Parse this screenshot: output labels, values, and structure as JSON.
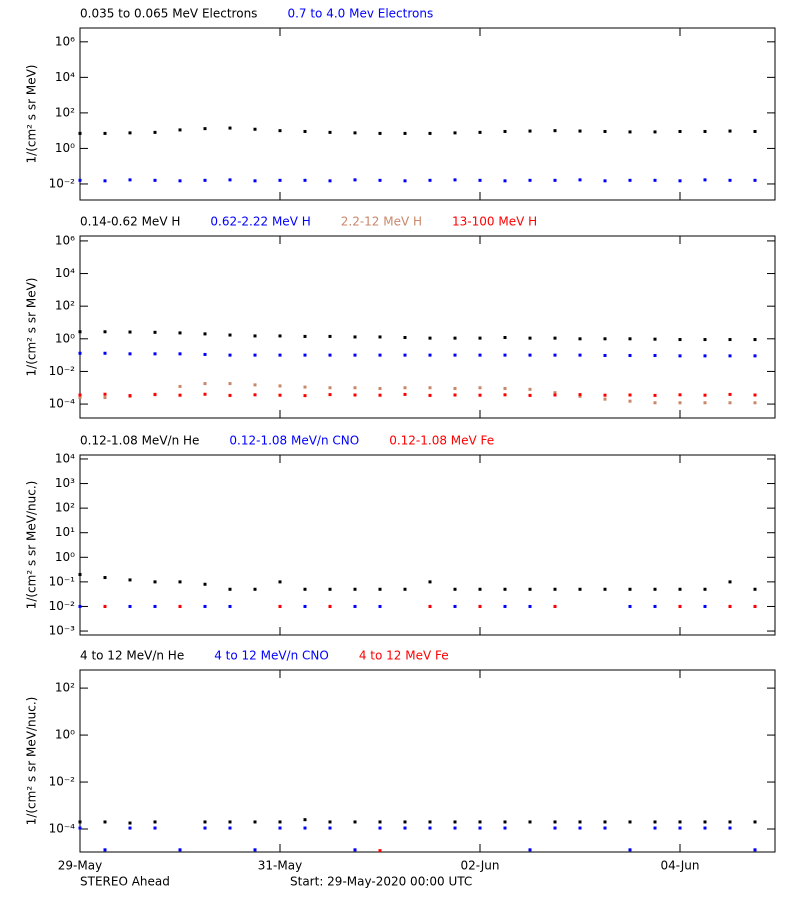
{
  "chart_data": [
    {
      "type": "scatter",
      "log_y": true,
      "y_label": "1/(cm² s sr MeV)",
      "x": [
        0,
        0.25,
        0.5,
        0.75,
        1,
        1.25,
        1.5,
        1.75,
        2,
        2.25,
        2.5,
        2.75,
        3,
        3.25,
        3.5,
        3.75,
        4,
        4.25,
        4.5,
        4.75,
        5,
        5.25,
        5.5,
        5.75,
        6,
        6.25,
        6.5,
        6.75
      ],
      "ylim": [
        0.00125,
        6000000
      ],
      "yticks": [
        {
          "value": 0.01,
          "label": "10⁻²"
        },
        {
          "value": 1,
          "label": "10⁰"
        },
        {
          "value": 100,
          "label": "10²"
        },
        {
          "value": 10000,
          "label": "10⁴"
        },
        {
          "value": 1000000,
          "label": "10⁶"
        }
      ],
      "series": [
        {
          "name": "0.035 to 0.065 MeV Electrons",
          "color": "#000000",
          "values": [
            7,
            7,
            7.5,
            8,
            11,
            13,
            14,
            12,
            10,
            9,
            8,
            7.5,
            7,
            7,
            7,
            7.5,
            8,
            9,
            9.5,
            10,
            9.5,
            9,
            8.5,
            8.5,
            9,
            9,
            9.5,
            9
          ]
        },
        {
          "name": "0.7 to 4.0 Mev Electrons",
          "color": "#0000ff",
          "values": [
            0.016,
            0.015,
            0.017,
            0.016,
            0.015,
            0.016,
            0.017,
            0.015,
            0.016,
            0.016,
            0.015,
            0.017,
            0.016,
            0.015,
            0.016,
            0.017,
            0.016,
            0.015,
            0.016,
            0.016,
            0.017,
            0.015,
            0.016,
            0.016,
            0.015,
            0.017,
            0.016,
            0.016
          ]
        }
      ]
    },
    {
      "type": "scatter",
      "log_y": true,
      "y_label": "1/(cm² s sr MeV)",
      "x": [
        0,
        0.25,
        0.5,
        0.75,
        1,
        1.25,
        1.5,
        1.75,
        2,
        2.25,
        2.5,
        2.75,
        3,
        3.25,
        3.5,
        3.75,
        4,
        4.25,
        4.5,
        4.75,
        5,
        5.25,
        5.5,
        5.75,
        6,
        6.25,
        6.5,
        6.75
      ],
      "ylim": [
        1.4e-05,
        2000000
      ],
      "yticks": [
        {
          "value": 0.0001,
          "label": "10⁻⁴"
        },
        {
          "value": 0.01,
          "label": "10⁻²"
        },
        {
          "value": 1,
          "label": "10⁰"
        },
        {
          "value": 100,
          "label": "10²"
        },
        {
          "value": 10000,
          "label": "10⁴"
        },
        {
          "value": 1000000,
          "label": "10⁶"
        }
      ],
      "series": [
        {
          "name": "0.14-0.62 MeV H",
          "color": "#000000",
          "values": [
            2.7,
            2.7,
            2.6,
            2.5,
            2.3,
            2.0,
            1.7,
            1.5,
            1.5,
            1.4,
            1.4,
            1.3,
            1.3,
            1.2,
            1.1,
            1.1,
            1.1,
            1.2,
            1.1,
            1.1,
            1.0,
            1.0,
            1.0,
            0.95,
            0.9,
            0.9,
            0.9,
            0.9
          ]
        },
        {
          "name": "0.62-2.22 MeV H",
          "color": "#0000ff",
          "values": [
            0.13,
            0.13,
            0.12,
            0.12,
            0.12,
            0.11,
            0.1,
            0.1,
            0.1,
            0.1,
            0.1,
            0.1,
            0.1,
            0.1,
            0.1,
            0.1,
            0.1,
            0.1,
            0.1,
            0.1,
            0.1,
            0.095,
            0.095,
            0.095,
            0.09,
            0.09,
            0.09,
            0.09
          ]
        },
        {
          "name": "2.2-12 MeV H",
          "color": "#c8876a",
          "values": [
            0.00025,
            0.00025,
            0.0003,
            0.0004,
            0.0012,
            0.0018,
            0.0018,
            0.0015,
            0.0013,
            0.0011,
            0.001,
            0.001,
            0.0009,
            0.001,
            0.001,
            0.0009,
            0.001,
            0.0009,
            0.0008,
            0.0005,
            0.0003,
            0.0002,
            0.00015,
            0.00012,
            0.00012,
            0.00012,
            0.00012,
            0.00012
          ]
        },
        {
          "name": "13-100 MeV H",
          "color": "#ff0000",
          "values": [
            0.00036,
            0.0004,
            0.00033,
            0.00038,
            0.00035,
            0.0004,
            0.00034,
            0.00037,
            0.00035,
            0.00033,
            0.00038,
            0.00036,
            0.00035,
            0.00039,
            0.00034,
            0.00036,
            0.00035,
            0.00037,
            0.00034,
            0.00036,
            0.00038,
            0.00035,
            0.00036,
            0.00034,
            0.00037,
            0.00035,
            0.00039,
            0.00036
          ]
        }
      ]
    },
    {
      "type": "scatter",
      "log_y": true,
      "y_label": "1/(cm² s sr MeV/nuc.)",
      "x": [
        0,
        0.25,
        0.5,
        0.75,
        1,
        1.25,
        1.5,
        1.75,
        2,
        2.25,
        2.5,
        2.75,
        3,
        3.25,
        3.5,
        3.75,
        4,
        4.25,
        4.5,
        4.75,
        5,
        5.25,
        5.5,
        5.75,
        6,
        6.25,
        6.5,
        6.75
      ],
      "ylim": [
        0.00069,
        14500
      ],
      "yticks": [
        {
          "value": 0.001,
          "label": "10⁻³"
        },
        {
          "value": 0.01,
          "label": "10⁻²"
        },
        {
          "value": 0.1,
          "label": "10⁻¹"
        },
        {
          "value": 1,
          "label": "10⁰"
        },
        {
          "value": 10,
          "label": "10¹"
        },
        {
          "value": 100,
          "label": "10²"
        },
        {
          "value": 1000,
          "label": "10³"
        },
        {
          "value": 10000,
          "label": "10⁴"
        }
      ],
      "series": [
        {
          "name": "0.12-1.08 MeV/n He",
          "color": "#000000",
          "values": [
            0.2,
            0.15,
            0.12,
            0.1,
            0.1,
            0.08,
            0.05,
            0.05,
            0.1,
            0.05,
            0.05,
            0.05,
            0.05,
            0.05,
            0.1,
            0.05,
            0.05,
            0.05,
            0.05,
            0.05,
            0.05,
            0.05,
            0.05,
            0.05,
            0.05,
            0.05,
            0.1,
            0.05
          ]
        },
        {
          "name": "0.12-1.08 MeV/n CNO",
          "color": "#0000ff",
          "values": [
            0.01,
            0.01,
            0.01,
            0.01,
            0.01,
            0.01,
            0.01,
            null,
            0.01,
            0.01,
            0.01,
            0.01,
            0.01,
            null,
            0.01,
            0.01,
            0.01,
            0.01,
            0.01,
            0.01,
            null,
            null,
            0.01,
            0.01,
            0.01,
            0.01,
            0.01,
            0.01
          ]
        },
        {
          "name": "0.12-1.08 MeV Fe",
          "color": "#ff0000",
          "values": [
            null,
            0.01,
            null,
            null,
            0.01,
            null,
            null,
            null,
            0.01,
            null,
            0.01,
            null,
            null,
            null,
            0.01,
            null,
            0.01,
            null,
            null,
            0.01,
            null,
            null,
            null,
            null,
            0.01,
            null,
            0.01,
            0.01
          ]
        }
      ]
    },
    {
      "type": "scatter",
      "log_y": true,
      "y_label": "1/(cm² s sr MeV/nuc.)",
      "x": [
        0,
        0.25,
        0.5,
        0.75,
        1,
        1.25,
        1.5,
        1.75,
        2,
        2.25,
        2.5,
        2.75,
        3,
        3.25,
        3.5,
        3.75,
        4,
        4.25,
        4.5,
        4.75,
        5,
        5.25,
        5.5,
        5.75,
        6,
        6.25,
        6.5,
        6.75
      ],
      "xlim": [
        0,
        6.95
      ],
      "xticks": [
        {
          "value": 0,
          "label": "29-May"
        },
        {
          "value": 2,
          "label": "31-May"
        },
        {
          "value": 4,
          "label": "02-Jun"
        },
        {
          "value": 6,
          "label": "04-Jun"
        }
      ],
      "ylim": [
        1.05e-05,
        590
      ],
      "yticks": [
        {
          "value": 0.0001,
          "label": "10⁻⁴"
        },
        {
          "value": 0.01,
          "label": "10⁻²"
        },
        {
          "value": 1,
          "label": "10⁰"
        },
        {
          "value": 100,
          "label": "10²"
        }
      ],
      "series": [
        {
          "name": "4 to 12 MeV/n He",
          "color": "#000000",
          "values": [
            0.0002,
            0.0002,
            0.00018,
            0.0002,
            null,
            0.0002,
            0.0002,
            0.0002,
            0.0002,
            0.00025,
            0.0002,
            0.0002,
            0.0002,
            0.0002,
            0.0002,
            0.0002,
            0.0002,
            0.0002,
            0.0002,
            0.0002,
            0.0002,
            0.0002,
            0.0002,
            0.0002,
            0.0002,
            0.0002,
            0.0002,
            0.0002
          ]
        },
        {
          "name": "4 to 12 MeV/n CNO",
          "color": "#0000ff",
          "values": [
            0.00011,
            1.3e-05,
            0.00011,
            0.00011,
            1.3e-05,
            0.00011,
            0.00011,
            1.3e-05,
            0.00011,
            0.00011,
            0.00011,
            1.3e-05,
            0.00011,
            0.00011,
            0.00011,
            0.00011,
            0.00011,
            0.00011,
            1.3e-05,
            0.00011,
            0.00011,
            0.00011,
            1.3e-05,
            0.00011,
            0.00011,
            0.00011,
            0.00011,
            1.3e-05
          ]
        },
        {
          "name": "4 to 12 MeV Fe",
          "color": "#ff0000",
          "values": [
            null,
            null,
            null,
            null,
            null,
            null,
            null,
            null,
            null,
            null,
            null,
            null,
            1.2e-05,
            null,
            null,
            null,
            null,
            null,
            null,
            null,
            null,
            null,
            null,
            null,
            null,
            null,
            null,
            null
          ]
        }
      ]
    }
  ],
  "footer": {
    "mission": "STEREO Ahead",
    "start": "Start: 29-May-2020 00:00 UTC"
  }
}
